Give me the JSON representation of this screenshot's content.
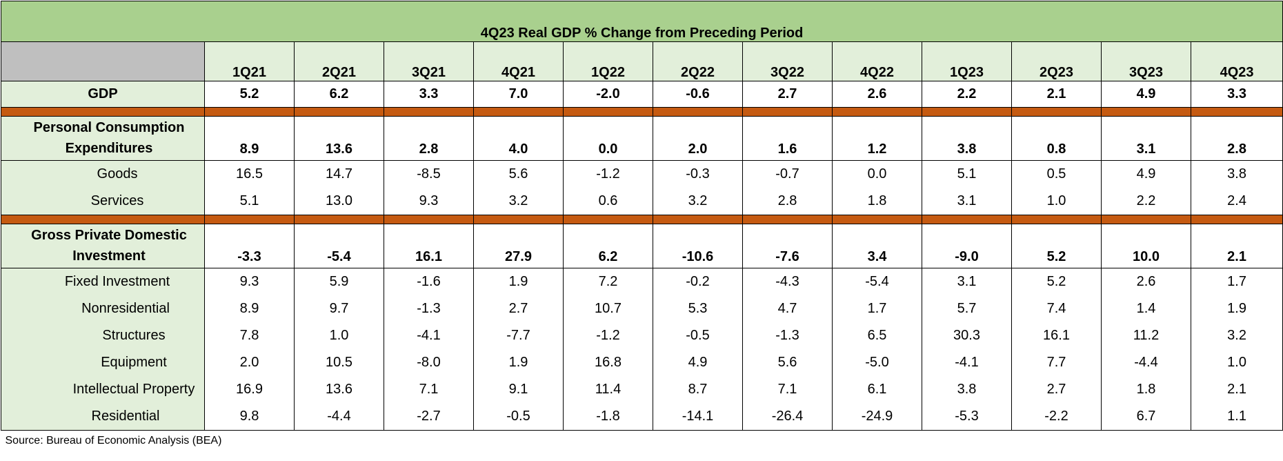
{
  "chart_data": {
    "type": "table",
    "title": "4Q23 Real GDP % Change from Preceding Period",
    "columns": [
      "1Q21",
      "2Q21",
      "3Q21",
      "4Q21",
      "1Q22",
      "2Q22",
      "3Q22",
      "4Q22",
      "1Q23",
      "2Q23",
      "3Q23",
      "4Q23"
    ],
    "gdp": {
      "label": "GDP",
      "values": [
        "5.2",
        "6.2",
        "3.3",
        "7.0",
        "-2.0",
        "-0.6",
        "2.7",
        "2.6",
        "2.2",
        "2.1",
        "4.9",
        "3.3"
      ]
    },
    "pce": {
      "label_line1": "Personal Consumption",
      "label_line2": "Expenditures",
      "values": [
        "8.9",
        "13.6",
        "2.8",
        "4.0",
        "0.0",
        "2.0",
        "1.6",
        "1.2",
        "3.8",
        "0.8",
        "3.1",
        "2.8"
      ],
      "rows": [
        {
          "label": "Goods",
          "values": [
            "16.5",
            "14.7",
            "-8.5",
            "5.6",
            "-1.2",
            "-0.3",
            "-0.7",
            "0.0",
            "5.1",
            "0.5",
            "4.9",
            "3.8"
          ]
        },
        {
          "label": "Services",
          "values": [
            "5.1",
            "13.0",
            "9.3",
            "3.2",
            "0.6",
            "3.2",
            "2.8",
            "1.8",
            "3.1",
            "1.0",
            "2.2",
            "2.4"
          ]
        }
      ]
    },
    "gpdi": {
      "label_line1": "Gross Private Domestic",
      "label_line2": "Investment",
      "values": [
        "-3.3",
        "-5.4",
        "16.1",
        "27.9",
        "6.2",
        "-10.6",
        "-7.6",
        "3.4",
        "-9.0",
        "5.2",
        "10.0",
        "2.1"
      ],
      "rows": [
        {
          "label": "Fixed Investment",
          "values": [
            "9.3",
            "5.9",
            "-1.6",
            "1.9",
            "7.2",
            "-0.2",
            "-4.3",
            "-5.4",
            "3.1",
            "5.2",
            "2.6",
            "1.7"
          ]
        },
        {
          "label": "Nonresidential",
          "values": [
            "8.9",
            "9.7",
            "-1.3",
            "2.7",
            "10.7",
            "5.3",
            "4.7",
            "1.7",
            "5.7",
            "7.4",
            "1.4",
            "1.9"
          ]
        },
        {
          "label": "Structures",
          "values": [
            "7.8",
            "1.0",
            "-4.1",
            "-7.7",
            "-1.2",
            "-0.5",
            "-1.3",
            "6.5",
            "30.3",
            "16.1",
            "11.2",
            "3.2"
          ]
        },
        {
          "label": "Equipment",
          "values": [
            "2.0",
            "10.5",
            "-8.0",
            "1.9",
            "16.8",
            "4.9",
            "5.6",
            "-5.0",
            "-4.1",
            "7.7",
            "-4.4",
            "1.0"
          ]
        },
        {
          "label": "Intellectual Property",
          "values": [
            "16.9",
            "13.6",
            "7.1",
            "9.1",
            "11.4",
            "8.7",
            "7.1",
            "6.1",
            "3.8",
            "2.7",
            "1.8",
            "2.1"
          ]
        },
        {
          "label": "Residential",
          "values": [
            "9.8",
            "-4.4",
            "-2.7",
            "-0.5",
            "-1.8",
            "-14.1",
            "-26.4",
            "-24.9",
            "-5.3",
            "-2.2",
            "6.7",
            "1.1"
          ]
        }
      ]
    },
    "source": "Source: Bureau of Economic Analysis (BEA)"
  },
  "colors": {
    "title_bg": "#a9d08e",
    "label_bg": "#e2efda",
    "corner_bg": "#bfbfbf",
    "separator": "#c55a11"
  }
}
